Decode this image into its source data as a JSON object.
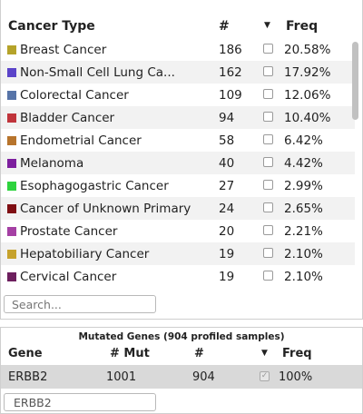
{
  "cancer_table": {
    "headers": {
      "name": "Cancer Type",
      "count": "#",
      "sort_icon": "caret-down-icon",
      "freq": "Freq"
    },
    "rows": [
      {
        "name": "Breast Cancer",
        "count": "186",
        "freq": "20.58%",
        "color": "#b5a32a"
      },
      {
        "name": "Non-Small Cell Lung Ca...",
        "count": "162",
        "freq": "17.92%",
        "color": "#5b44c9"
      },
      {
        "name": "Colorectal Cancer",
        "count": "109",
        "freq": "12.06%",
        "color": "#5774a8"
      },
      {
        "name": "Bladder Cancer",
        "count": "94",
        "freq": "10.40%",
        "color": "#c0343b"
      },
      {
        "name": "Endometrial Cancer",
        "count": "58",
        "freq": "6.42%",
        "color": "#b7742c"
      },
      {
        "name": "Melanoma",
        "count": "40",
        "freq": "4.42%",
        "color": "#7d1f9e"
      },
      {
        "name": "Esophagogastric Cancer",
        "count": "27",
        "freq": "2.99%",
        "color": "#2ed33e"
      },
      {
        "name": "Cancer of Unknown Primary",
        "count": "24",
        "freq": "2.65%",
        "color": "#7f0e13"
      },
      {
        "name": "Prostate Cancer",
        "count": "20",
        "freq": "2.21%",
        "color": "#a540a4"
      },
      {
        "name": "Hepatobiliary Cancer",
        "count": "19",
        "freq": "2.10%",
        "color": "#c6a22c"
      },
      {
        "name": "Cervical Cancer",
        "count": "19",
        "freq": "2.10%",
        "color": "#6d1f5e"
      }
    ],
    "search_placeholder": "Search..."
  },
  "mutated_genes": {
    "title": "Mutated Genes (904 profiled samples)",
    "headers": {
      "gene": "Gene",
      "mut": "# Mut",
      "count": "#",
      "sort_icon": "caret-down-icon",
      "freq": "Freq"
    },
    "rows": [
      {
        "gene": "ERBB2",
        "mut": "1001",
        "count": "904",
        "checked": true,
        "freq": "100%"
      }
    ],
    "input_value": "ERBB2"
  }
}
